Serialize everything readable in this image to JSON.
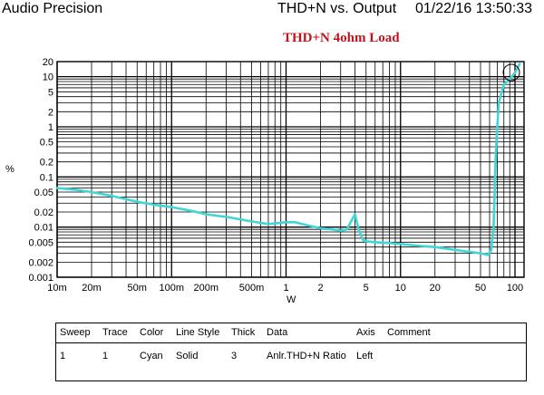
{
  "header": {
    "app": "Audio Precision",
    "plot_name": "THD+N vs. Output",
    "datetime": "01/22/16 13:50:33"
  },
  "colors": {
    "trace": "#3fd6d6",
    "grid": "#000000",
    "subtitle": "#c0141c"
  },
  "chart_data": {
    "type": "line",
    "title": "THD+N 4ohm Load",
    "xlabel": "W",
    "ylabel": "%",
    "xscale": "log",
    "yscale": "log",
    "xlim": [
      0.01,
      120
    ],
    "ylim": [
      0.001,
      20
    ],
    "grid": true,
    "x_ticks": [
      0.01,
      0.02,
      0.05,
      0.1,
      0.2,
      0.5,
      1,
      2,
      5,
      10,
      20,
      50,
      100
    ],
    "x_tick_labels": [
      "10m",
      "20m",
      "50m",
      "100m",
      "200m",
      "500m",
      "1",
      "2",
      "5",
      "10",
      "20",
      "50",
      "100"
    ],
    "y_ticks": [
      20,
      10,
      5,
      2,
      1,
      0.5,
      0.2,
      0.1,
      0.05,
      0.02,
      0.01,
      0.005,
      0.002,
      0.001
    ],
    "y_tick_labels": [
      "20",
      "10",
      "5",
      "2",
      "1",
      "0.5",
      "0.2",
      "0.1",
      "0.05",
      "0.02",
      "0.01",
      "0.005",
      "0.002",
      "0.001"
    ],
    "series": [
      {
        "x": [
          0.01,
          0.015,
          0.02,
          0.03,
          0.05,
          0.07,
          0.1,
          0.15,
          0.2,
          0.3,
          0.5,
          0.7,
          1.0,
          1.2,
          1.5,
          2.0,
          2.5,
          3.0,
          3.4,
          3.7,
          4.0,
          4.3,
          4.7,
          5.0,
          6.0,
          8.0,
          10,
          15,
          20,
          30,
          40,
          50,
          58,
          62,
          65,
          68,
          72,
          80,
          90,
          100,
          110
        ],
        "y": [
          0.06,
          0.055,
          0.05,
          0.042,
          0.032,
          0.028,
          0.025,
          0.021,
          0.018,
          0.016,
          0.013,
          0.0115,
          0.0125,
          0.0125,
          0.011,
          0.0095,
          0.009,
          0.0085,
          0.009,
          0.013,
          0.018,
          0.009,
          0.0055,
          0.0052,
          0.005,
          0.0048,
          0.0046,
          0.0042,
          0.004,
          0.0035,
          0.0032,
          0.003,
          0.0028,
          0.0035,
          0.01,
          0.3,
          3,
          7,
          9,
          12,
          18
        ]
      }
    ]
  },
  "legend": {
    "headers": [
      "Sweep",
      "Trace",
      "Color",
      "Line Style",
      "Thick",
      "Data",
      "Axis",
      "Comment"
    ],
    "rows": [
      [
        "1",
        "1",
        "Cyan",
        "Solid",
        "3",
        "Anlr.THD+N Ratio",
        "Left",
        ""
      ]
    ]
  }
}
